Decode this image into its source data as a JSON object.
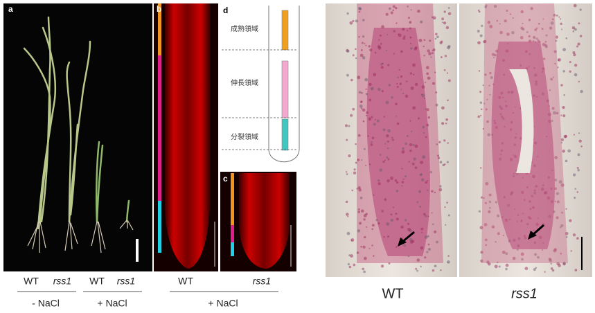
{
  "panels": {
    "a": {
      "label": "a",
      "groups": [
        {
          "items": [
            "WT",
            "rss1"
          ],
          "condition": "- NaCl"
        },
        {
          "items": [
            "WT",
            "rss1"
          ],
          "condition": "+ NaCl"
        }
      ]
    },
    "b": {
      "label": "b"
    },
    "c": {
      "label": "c"
    },
    "d": {
      "label": "d",
      "zones": [
        "成熟領域",
        "伸長領域",
        "分裂領域"
      ]
    },
    "bc_caption": {
      "items": [
        "WT",
        "rss1"
      ],
      "condition": "+ NaCl"
    }
  },
  "right": {
    "labels": [
      "WT",
      "rss1"
    ]
  }
}
